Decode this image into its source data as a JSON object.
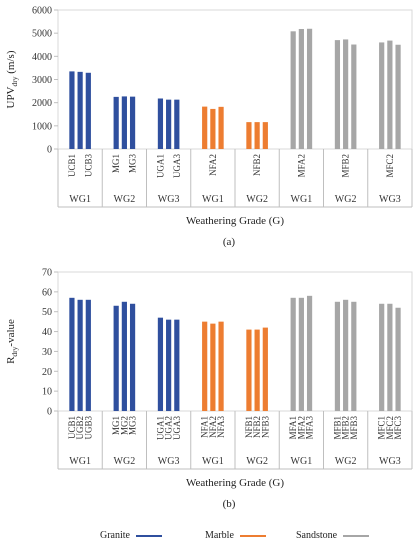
{
  "colors": {
    "Granite": "#2f4f9e",
    "Marble": "#ed7d31",
    "Sandstone": "#a6a6a6"
  },
  "legend": [
    {
      "label": "Granite",
      "color": "#2f4f9e"
    },
    {
      "label": "Marble",
      "color": "#ed7d31"
    },
    {
      "label": "Sandstone",
      "color": "#a6a6a6"
    }
  ],
  "chart_data": [
    {
      "type": "bar",
      "caption": "(a)",
      "ylabel": "UPV",
      "ylabel_sub": "dry",
      "ylabel_unit": " (m/s)",
      "xlabel": "Weathering Grade (G)",
      "ylim": [
        0,
        6000
      ],
      "yticks": [
        0,
        1000,
        2000,
        3000,
        4000,
        5000,
        6000
      ],
      "groups": [
        {
          "grade": "WG1",
          "rock": "Granite",
          "samples": [
            {
              "label": "UCB1",
              "value": 3350
            },
            {
              "label": "",
              "value": 3330
            },
            {
              "label": "UCB3",
              "value": 3290
            }
          ]
        },
        {
          "grade": "WG2",
          "rock": "Granite",
          "samples": [
            {
              "label": "MG1",
              "value": 2250
            },
            {
              "label": "",
              "value": 2270
            },
            {
              "label": "MG3",
              "value": 2260
            }
          ]
        },
        {
          "grade": "WG3",
          "rock": "Granite",
          "samples": [
            {
              "label": "UGA1",
              "value": 2180
            },
            {
              "label": "",
              "value": 2130
            },
            {
              "label": "UGA3",
              "value": 2130
            }
          ]
        },
        {
          "grade": "WG1",
          "rock": "Marble",
          "samples": [
            {
              "label": "",
              "value": 1830
            },
            {
              "label": "NFA2",
              "value": 1730
            },
            {
              "label": "",
              "value": 1820
            }
          ]
        },
        {
          "grade": "WG2",
          "rock": "Marble",
          "samples": [
            {
              "label": "",
              "value": 1160
            },
            {
              "label": "NFB2",
              "value": 1160
            },
            {
              "label": "",
              "value": 1160
            }
          ]
        },
        {
          "grade": "WG1",
          "rock": "Sandstone",
          "samples": [
            {
              "label": "",
              "value": 5080
            },
            {
              "label": "MFA2",
              "value": 5180
            },
            {
              "label": "",
              "value": 5190
            }
          ]
        },
        {
          "grade": "WG2",
          "rock": "Sandstone",
          "samples": [
            {
              "label": "",
              "value": 4700
            },
            {
              "label": "MFB2",
              "value": 4730
            },
            {
              "label": "",
              "value": 4510
            }
          ]
        },
        {
          "grade": "WG3",
          "rock": "Sandstone",
          "samples": [
            {
              "label": "",
              "value": 4600
            },
            {
              "label": "MFC2",
              "value": 4680
            },
            {
              "label": "",
              "value": 4500
            }
          ]
        }
      ]
    },
    {
      "type": "bar",
      "caption": "(b)",
      "ylabel": "R",
      "ylabel_sub": "dry",
      "ylabel_unit": "-value",
      "xlabel": "Weathering Grade (G)",
      "ylim": [
        0,
        70
      ],
      "yticks": [
        0,
        10,
        20,
        30,
        40,
        50,
        60,
        70
      ],
      "groups": [
        {
          "grade": "WG1",
          "rock": "Granite",
          "samples": [
            {
              "label": "UCB1",
              "value": 57
            },
            {
              "label": "UGB2",
              "value": 56
            },
            {
              "label": "UGB3",
              "value": 56
            }
          ]
        },
        {
          "grade": "WG2",
          "rock": "Granite",
          "samples": [
            {
              "label": "MG1",
              "value": 53
            },
            {
              "label": "MG2",
              "value": 55
            },
            {
              "label": "MG3",
              "value": 54
            }
          ]
        },
        {
          "grade": "WG3",
          "rock": "Granite",
          "samples": [
            {
              "label": "UGA1",
              "value": 47
            },
            {
              "label": "UGA2",
              "value": 46
            },
            {
              "label": "UGA3",
              "value": 46
            }
          ]
        },
        {
          "grade": "WG1",
          "rock": "Marble",
          "samples": [
            {
              "label": "NFA1",
              "value": 45
            },
            {
              "label": "NFA2",
              "value": 44
            },
            {
              "label": "NFA3",
              "value": 45
            }
          ]
        },
        {
          "grade": "WG2",
          "rock": "Marble",
          "samples": [
            {
              "label": "NFB1",
              "value": 41
            },
            {
              "label": "NFB2",
              "value": 41
            },
            {
              "label": "NFB3",
              "value": 42
            }
          ]
        },
        {
          "grade": "WG1",
          "rock": "Sandstone",
          "samples": [
            {
              "label": "MFA1",
              "value": 57
            },
            {
              "label": "MFA2",
              "value": 57
            },
            {
              "label": "MFA3",
              "value": 58
            }
          ]
        },
        {
          "grade": "WG2",
          "rock": "Sandstone",
          "samples": [
            {
              "label": "MFB1",
              "value": 55
            },
            {
              "label": "MFB2",
              "value": 56
            },
            {
              "label": "MFB3",
              "value": 55
            }
          ]
        },
        {
          "grade": "WG3",
          "rock": "Sandstone",
          "samples": [
            {
              "label": "MFC1",
              "value": 54
            },
            {
              "label": "MFC2",
              "value": 54
            },
            {
              "label": "MFC3",
              "value": 52
            }
          ]
        }
      ]
    }
  ]
}
